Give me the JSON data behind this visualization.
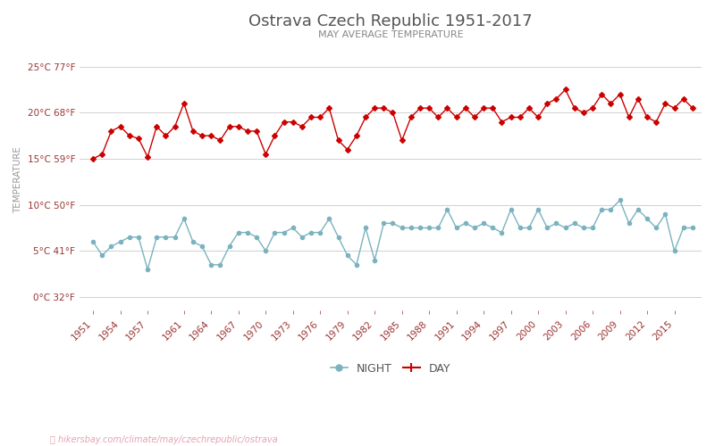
{
  "title": "Ostrava Czech Republic 1951-2017",
  "subtitle": "MAY AVERAGE TEMPERATURE",
  "ylabel": "TEMPERATURE",
  "url_text": "hikersbay.com/climate/may/czechrepublic/ostrava",
  "years": [
    1951,
    1952,
    1953,
    1954,
    1955,
    1956,
    1957,
    1958,
    1959,
    1960,
    1961,
    1962,
    1963,
    1964,
    1965,
    1966,
    1967,
    1968,
    1969,
    1970,
    1971,
    1972,
    1973,
    1974,
    1975,
    1976,
    1977,
    1978,
    1979,
    1980,
    1981,
    1982,
    1983,
    1984,
    1985,
    1986,
    1987,
    1988,
    1989,
    1990,
    1991,
    1992,
    1993,
    1994,
    1995,
    1996,
    1997,
    1998,
    1999,
    2000,
    2001,
    2002,
    2003,
    2004,
    2005,
    2006,
    2007,
    2008,
    2009,
    2010,
    2011,
    2012,
    2013,
    2014,
    2015,
    2016,
    2017
  ],
  "day_temps": [
    15.0,
    15.5,
    18.0,
    18.5,
    17.5,
    17.2,
    15.2,
    18.5,
    17.5,
    18.5,
    21.0,
    18.0,
    17.5,
    17.5,
    17.0,
    18.5,
    18.5,
    18.0,
    18.0,
    15.5,
    17.5,
    19.0,
    19.0,
    18.5,
    19.5,
    19.5,
    20.5,
    17.0,
    16.0,
    17.5,
    19.5,
    20.5,
    20.5,
    20.0,
    17.0,
    19.5,
    20.5,
    20.5,
    19.5,
    20.5,
    19.5,
    20.5,
    19.5,
    20.5,
    20.5,
    19.0,
    19.5,
    19.5,
    20.5,
    19.5,
    21.0,
    21.5,
    22.5,
    20.5,
    20.0,
    20.5,
    22.0,
    21.0,
    22.0,
    19.5,
    21.5,
    19.5,
    19.0,
    21.0,
    20.5,
    21.5,
    20.5
  ],
  "night_temps": [
    6.0,
    4.5,
    5.5,
    6.0,
    6.5,
    6.5,
    3.0,
    6.5,
    6.5,
    6.5,
    8.5,
    6.0,
    5.5,
    3.5,
    3.5,
    5.5,
    7.0,
    7.0,
    6.5,
    5.0,
    7.0,
    7.0,
    7.5,
    6.5,
    7.0,
    7.0,
    8.5,
    6.5,
    4.5,
    3.5,
    7.5,
    4.0,
    8.0,
    8.0,
    7.5,
    7.5,
    7.5,
    7.5,
    7.5,
    9.5,
    7.5,
    8.0,
    7.5,
    8.0,
    7.5,
    7.0,
    9.5,
    7.5,
    7.5,
    9.5,
    7.5,
    8.0,
    7.5,
    8.0,
    7.5,
    7.5,
    9.5,
    9.5,
    10.5,
    8.0,
    9.5,
    8.5,
    7.5,
    9.0,
    5.0,
    7.5,
    7.5
  ],
  "day_color": "#cc0000",
  "night_color": "#7ab3bf",
  "title_color": "#555555",
  "subtitle_color": "#888888",
  "ylabel_color": "#999999",
  "axis_label_color": "#9b3333",
  "grid_color": "#d0d0d0",
  "background_color": "#ffffff",
  "url_color": "#e8a0b0",
  "yticks_c": [
    0,
    5,
    10,
    15,
    20,
    25
  ],
  "yticks_f": [
    32,
    41,
    50,
    59,
    68,
    77
  ],
  "ylim": [
    -1.5,
    27
  ],
  "xtick_years": [
    1951,
    1954,
    1957,
    1961,
    1964,
    1967,
    1970,
    1973,
    1976,
    1979,
    1982,
    1985,
    1988,
    1991,
    1994,
    1997,
    2000,
    2003,
    2006,
    2009,
    2012,
    2015
  ]
}
